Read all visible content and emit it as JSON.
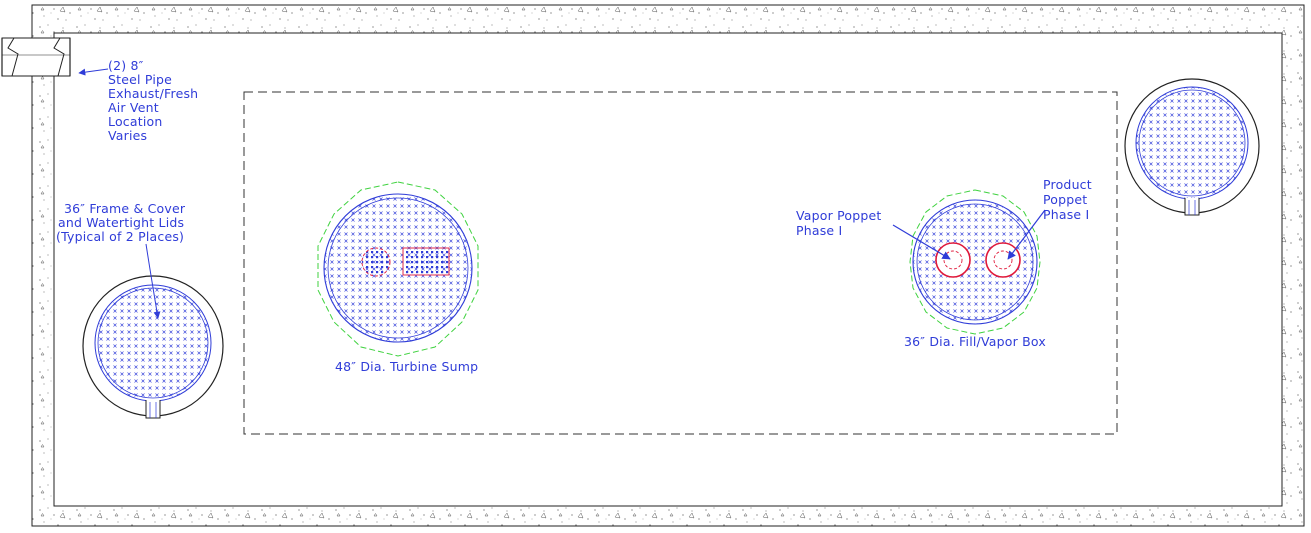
{
  "annotations": {
    "vent": {
      "line1": "(2) 8″",
      "line2": "Steel Pipe",
      "line3": "Exhaust/Fresh",
      "line4": "Air Vent",
      "line5": "Location",
      "line6": "Varies"
    },
    "frame_cover": {
      "line1": "36″ Frame & Cover",
      "line2": "and Watertight Lids",
      "line3": "(Typical of 2 Places)"
    },
    "turbine_sump": "48″ Dia. Turbine Sump",
    "fill_vapor_box": "36″ Dia. Fill/Vapor Box",
    "vapor_poppet": {
      "line1": "Vapor Poppet",
      "line2": "Phase I"
    },
    "product_poppet": {
      "line1": "Product",
      "line2": "Poppet",
      "line3": "Phase I"
    }
  },
  "colors": {
    "annotation_blue": "#2f3cd8",
    "concrete_outline": "#222222",
    "sump_green": "#3fd23f",
    "poppet_red": "#e0193a",
    "dashed_gray": "#333333"
  }
}
